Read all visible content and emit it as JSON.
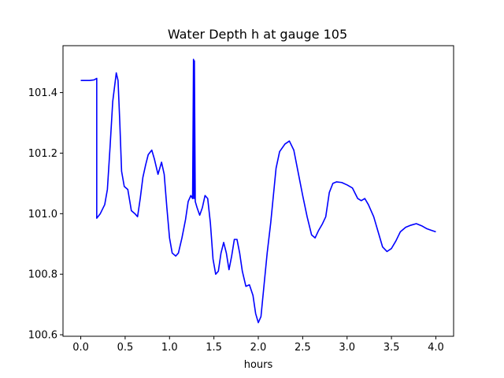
{
  "chart_data": {
    "type": "line",
    "title": "Water Depth h at gauge 105",
    "xlabel": "hours",
    "ylabel": "",
    "xlim": [
      -0.2,
      4.2
    ],
    "ylim": [
      100.595,
      101.555
    ],
    "xticks": [
      0.0,
      0.5,
      1.0,
      1.5,
      2.0,
      2.5,
      3.0,
      3.5,
      4.0
    ],
    "xtick_labels": [
      "0.0",
      "0.5",
      "1.0",
      "1.5",
      "2.0",
      "2.5",
      "3.0",
      "3.5",
      "4.0"
    ],
    "yticks": [
      100.6,
      100.8,
      101.0,
      101.2,
      101.4
    ],
    "ytick_labels": [
      "100.6",
      "100.8",
      "101.0",
      "101.2",
      "101.4"
    ],
    "grid": false,
    "legend": "none",
    "series": [
      {
        "color": "#0000ff",
        "points": [
          [
            0.0,
            101.44
          ],
          [
            0.1,
            101.44
          ],
          [
            0.15,
            101.442
          ],
          [
            0.18,
            101.447
          ],
          [
            0.18,
            100.985
          ],
          [
            0.22,
            101.0
          ],
          [
            0.27,
            101.03
          ],
          [
            0.3,
            101.08
          ],
          [
            0.33,
            101.22
          ],
          [
            0.36,
            101.37
          ],
          [
            0.4,
            101.465
          ],
          [
            0.42,
            101.44
          ],
          [
            0.44,
            101.3
          ],
          [
            0.46,
            101.14
          ],
          [
            0.49,
            101.09
          ],
          [
            0.53,
            101.08
          ],
          [
            0.57,
            101.01
          ],
          [
            0.61,
            101.0
          ],
          [
            0.64,
            100.99
          ],
          [
            0.67,
            101.05
          ],
          [
            0.7,
            101.12
          ],
          [
            0.73,
            101.16
          ],
          [
            0.76,
            101.195
          ],
          [
            0.8,
            101.21
          ],
          [
            0.83,
            101.18
          ],
          [
            0.87,
            101.13
          ],
          [
            0.91,
            101.17
          ],
          [
            0.94,
            101.13
          ],
          [
            0.97,
            101.02
          ],
          [
            1.0,
            100.92
          ],
          [
            1.03,
            100.87
          ],
          [
            1.07,
            100.86
          ],
          [
            1.1,
            100.87
          ],
          [
            1.14,
            100.92
          ],
          [
            1.18,
            100.98
          ],
          [
            1.21,
            101.04
          ],
          [
            1.24,
            101.06
          ],
          [
            1.26,
            101.05
          ],
          [
            1.27,
            101.51
          ],
          [
            1.275,
            101.05
          ],
          [
            1.28,
            101.505
          ],
          [
            1.29,
            101.04
          ],
          [
            1.31,
            101.02
          ],
          [
            1.34,
            100.995
          ],
          [
            1.37,
            101.02
          ],
          [
            1.4,
            101.06
          ],
          [
            1.43,
            101.05
          ],
          [
            1.46,
            100.97
          ],
          [
            1.49,
            100.85
          ],
          [
            1.52,
            100.8
          ],
          [
            1.55,
            100.81
          ],
          [
            1.58,
            100.87
          ],
          [
            1.61,
            100.905
          ],
          [
            1.64,
            100.87
          ],
          [
            1.67,
            100.815
          ],
          [
            1.7,
            100.86
          ],
          [
            1.73,
            100.915
          ],
          [
            1.76,
            100.915
          ],
          [
            1.79,
            100.87
          ],
          [
            1.82,
            100.81
          ],
          [
            1.86,
            100.76
          ],
          [
            1.9,
            100.765
          ],
          [
            1.94,
            100.73
          ],
          [
            1.97,
            100.67
          ],
          [
            2.0,
            100.64
          ],
          [
            2.03,
            100.66
          ],
          [
            2.06,
            100.75
          ],
          [
            2.1,
            100.87
          ],
          [
            2.14,
            100.97
          ],
          [
            2.17,
            101.06
          ],
          [
            2.2,
            101.15
          ],
          [
            2.24,
            101.205
          ],
          [
            2.3,
            101.23
          ],
          [
            2.35,
            101.24
          ],
          [
            2.4,
            101.21
          ],
          [
            2.44,
            101.15
          ],
          [
            2.5,
            101.06
          ],
          [
            2.55,
            100.99
          ],
          [
            2.6,
            100.93
          ],
          [
            2.64,
            100.92
          ],
          [
            2.68,
            100.945
          ],
          [
            2.72,
            100.965
          ],
          [
            2.76,
            100.99
          ],
          [
            2.8,
            101.07
          ],
          [
            2.84,
            101.1
          ],
          [
            2.88,
            101.105
          ],
          [
            2.94,
            101.103
          ],
          [
            3.0,
            101.095
          ],
          [
            3.06,
            101.085
          ],
          [
            3.12,
            101.05
          ],
          [
            3.16,
            101.043
          ],
          [
            3.2,
            101.05
          ],
          [
            3.24,
            101.03
          ],
          [
            3.3,
            100.99
          ],
          [
            3.36,
            100.93
          ],
          [
            3.4,
            100.89
          ],
          [
            3.45,
            100.875
          ],
          [
            3.5,
            100.885
          ],
          [
            3.55,
            100.91
          ],
          [
            3.6,
            100.94
          ],
          [
            3.66,
            100.955
          ],
          [
            3.72,
            100.962
          ],
          [
            3.78,
            100.967
          ],
          [
            3.84,
            100.96
          ],
          [
            3.9,
            100.95
          ],
          [
            3.95,
            100.945
          ],
          [
            4.0,
            100.94
          ]
        ]
      }
    ]
  }
}
